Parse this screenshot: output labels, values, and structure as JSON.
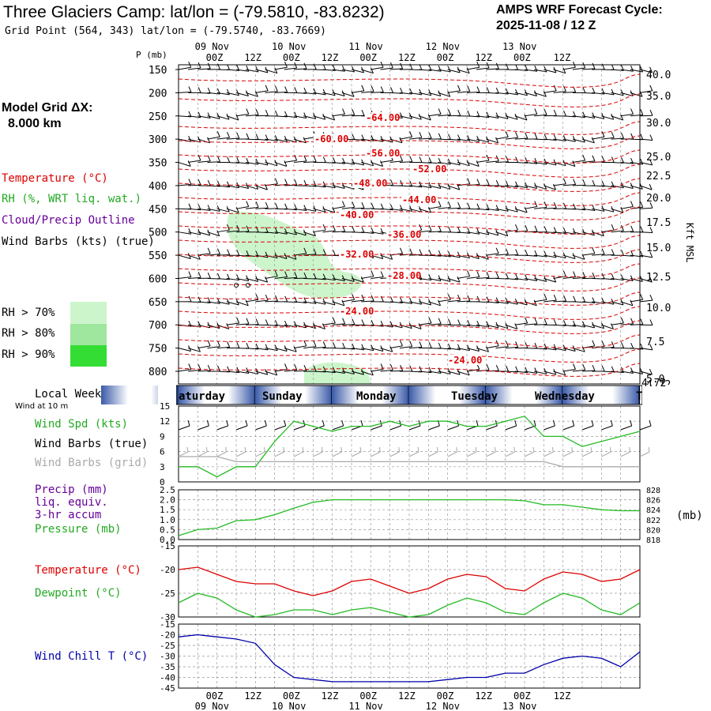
{
  "header": {
    "title": "Three Glaciers Camp:  lat/lon = (-79.5810, -83.8232)",
    "grid_point": "Grid Point (564, 343) lat/lon = (-79.5740, -83.7669)",
    "forecast_label": "AMPS WRF Forecast Cycle:",
    "forecast_cycle": "2025-11-08 / 12  Z"
  },
  "left_panel": {
    "model_grid_label": "Model Grid ΔX:",
    "model_grid_value": "8.000 km",
    "legend_temperature": "Temperature (°C)",
    "legend_rh": "RH (%, WRT liq. wat.)",
    "legend_cloud": "Cloud/Precip Outline",
    "legend_wind": "Wind Barbs (kts) (true)",
    "rh_70": "RH > 70%",
    "rh_80": "RH > 80%",
    "rh_90": "RH > 90%",
    "local_weekday": "Local Weekday",
    "wind_at_10m": "Wind at 10 m",
    "wind_spd": "Wind Spd (kts)",
    "wind_barbs_true": "Wind Barbs (true)",
    "wind_barbs_grid": "Wind Barbs (grid)",
    "precip1": "Precip (mm)",
    "precip2": "liq. equiv.",
    "precip3": "3-hr accum",
    "pressure": "Pressure (mb)",
    "temperature": "Temperature (°C)",
    "dewpoint": "Dewpoint (°C)",
    "wind_chill": "Wind Chill T (°C)",
    "pressure_unit": "(mb)",
    "kft_label": "Kft MSL"
  },
  "colors": {
    "temperature": "#dd0000",
    "rh": "#22bb22",
    "cloud": "#660099",
    "windchill": "#0000aa",
    "gridbarb": "#aaaaaa",
    "rh70": "#ccf5cc",
    "rh80": "#9fe69f",
    "rh90": "#33dd33"
  },
  "time_axis": {
    "p_label": "P (mb)",
    "ticks": [
      "00Z",
      "12Z",
      "00Z",
      "12Z",
      "00Z",
      "12Z",
      "00Z",
      "12Z",
      "00Z",
      "12Z"
    ],
    "dates": [
      "09 Nov",
      "10 Nov",
      "11 Nov",
      "12 Nov",
      "13 Nov"
    ],
    "weekdays": [
      "aturday",
      "Sunday",
      "Monday",
      "Tuesday",
      "Wednesday",
      "T"
    ]
  },
  "chart_data": [
    {
      "type": "contour",
      "name": "upper-air",
      "ylabel": "P (mb)",
      "pressure_levels": [
        150,
        200,
        250,
        300,
        350,
        400,
        450,
        500,
        550,
        600,
        650,
        700,
        750,
        800
      ],
      "height_kft": [
        "40.0",
        "35.0",
        "30.0",
        "25.0",
        "22.5",
        "20.0",
        "17.5",
        "15.0",
        "12.5",
        "10.0",
        "7.5",
        "5.0",
        "4.72"
      ],
      "temperature_labels": [
        "-64.00",
        "-60.00",
        "-56.00",
        "-52.00",
        "-48.00",
        "-44.00",
        "-40.00",
        "-36.00",
        "-32.00",
        "-28.00",
        "-24.00",
        "-24.00"
      ]
    },
    {
      "type": "line",
      "name": "wind-speed",
      "yticks": [
        "15",
        "12",
        "9",
        "6",
        "3",
        "0"
      ],
      "ylim": [
        0,
        15
      ],
      "x_hours": [
        0,
        6,
        12,
        18,
        24,
        30,
        36,
        42,
        48,
        54,
        60,
        66,
        72,
        78,
        84,
        90,
        96,
        102,
        108,
        114,
        120,
        126,
        132,
        138,
        144
      ],
      "series": [
        {
          "name": "Wind Spd (kts)",
          "values": [
            3,
            3,
            1,
            3,
            3,
            8,
            12,
            11,
            10,
            11,
            11,
            12,
            11,
            12,
            12,
            11,
            11,
            12,
            13,
            9,
            9,
            7,
            8,
            9,
            10
          ]
        },
        {
          "name": "Wind Barbs (grid)",
          "values": [
            5,
            5,
            5,
            4,
            4,
            4,
            4,
            4,
            4,
            4,
            4,
            4,
            4,
            4,
            4,
            4,
            4,
            4,
            4,
            4,
            3,
            3,
            3,
            3,
            3
          ]
        }
      ]
    },
    {
      "type": "line",
      "name": "precip-pressure",
      "yticks_left": [
        "2.5",
        "2.0",
        "1.5",
        "1.0",
        "0.5",
        "0.0"
      ],
      "yticks_right": [
        "828",
        "826",
        "824",
        "822",
        "820",
        "818"
      ],
      "ylim_right": [
        818,
        828
      ],
      "x_hours": [
        0,
        6,
        12,
        18,
        24,
        30,
        36,
        42,
        48,
        54,
        60,
        66,
        72,
        78,
        84,
        90,
        96,
        102,
        108,
        114,
        120,
        126,
        132,
        138,
        144
      ],
      "series": [
        {
          "name": "Pressure (mb)",
          "values": [
            818.8,
            820.0,
            820.3,
            821.8,
            822.0,
            823.0,
            824.3,
            825.5,
            826.0,
            826.0,
            826.0,
            826.0,
            826.0,
            826.0,
            826.0,
            826.0,
            826.0,
            826.0,
            825.8,
            825.0,
            825.0,
            824.5,
            824.0,
            823.8,
            823.8
          ]
        }
      ]
    },
    {
      "type": "line",
      "name": "temperature-dewpoint",
      "yticks": [
        "-15",
        "-20",
        "-25",
        "-30"
      ],
      "ylim": [
        -30,
        -15
      ],
      "x_hours": [
        0,
        6,
        12,
        18,
        24,
        30,
        36,
        42,
        48,
        54,
        60,
        66,
        72,
        78,
        84,
        90,
        96,
        102,
        108,
        114,
        120,
        126,
        132,
        138,
        144
      ],
      "series": [
        {
          "name": "Temperature (°C)",
          "values": [
            -20.0,
            -19.5,
            -21.0,
            -22.5,
            -23.0,
            -23.0,
            -24.5,
            -25.5,
            -24.5,
            -22.5,
            -22.0,
            -23.5,
            -25.0,
            -24.0,
            -22.0,
            -21.0,
            -21.5,
            -24.0,
            -24.5,
            -22.0,
            -20.5,
            -21.0,
            -22.5,
            -22.0,
            -20.0
          ]
        },
        {
          "name": "Dewpoint (°C)",
          "values": [
            -27.0,
            -25.0,
            -26.0,
            -28.5,
            -30.0,
            -29.5,
            -28.5,
            -28.5,
            -29.5,
            -28.5,
            -28.0,
            -29.0,
            -30.0,
            -29.5,
            -27.5,
            -26.0,
            -27.0,
            -29.0,
            -29.5,
            -27.0,
            -25.0,
            -26.0,
            -28.5,
            -29.5,
            -27.0
          ]
        }
      ]
    },
    {
      "type": "line",
      "name": "wind-chill",
      "yticks": [
        "-15",
        "-20",
        "-25",
        "-30",
        "-35",
        "-40",
        "-45"
      ],
      "ylim": [
        -45,
        -15
      ],
      "x_hours": [
        0,
        6,
        12,
        18,
        24,
        30,
        36,
        42,
        48,
        54,
        60,
        66,
        72,
        78,
        84,
        90,
        96,
        102,
        108,
        114,
        120,
        126,
        132,
        138,
        144
      ],
      "series": [
        {
          "name": "Wind Chill T (°C)",
          "values": [
            -21,
            -20,
            -21,
            -22,
            -24,
            -34,
            -40,
            -41,
            -42,
            -42,
            -42,
            -42,
            -42,
            -42,
            -41,
            -40,
            -40,
            -38,
            -38,
            -34,
            -31,
            -30,
            -31,
            -35,
            -28
          ]
        }
      ]
    }
  ]
}
